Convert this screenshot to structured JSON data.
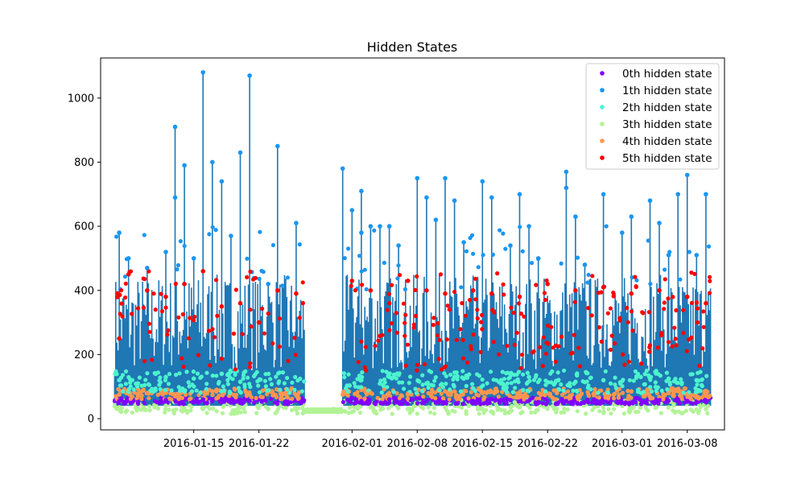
{
  "chart_data": {
    "type": "scatter",
    "title": "Hidden States",
    "xlabel": "",
    "ylabel": "",
    "x_axis": "date",
    "xlim": [
      "2016-01-05",
      "2016-03-12"
    ],
    "ylim": [
      -35,
      1125
    ],
    "x_ticks": [
      "2016-01-15",
      "2016-01-22",
      "2016-02-01",
      "2016-02-08",
      "2016-02-15",
      "2016-02-22",
      "2016-03-01",
      "2016-03-08"
    ],
    "y_ticks": [
      0,
      200,
      400,
      600,
      800,
      1000
    ],
    "grid": false,
    "legend_position": "top-right",
    "connecting_line_color": "#1f77b4",
    "gaps": [
      [
        "2016-01-27",
        "2016-01-31"
      ]
    ],
    "series": [
      {
        "name": "0th hidden state",
        "color": "#8000ff",
        "band": [
          45,
          65
        ],
        "points": [
          [
            "2016-01-07",
            55
          ],
          [
            "2016-01-09",
            52
          ],
          [
            "2016-01-12",
            58
          ],
          [
            "2016-01-16",
            60
          ],
          [
            "2016-01-19",
            50
          ],
          [
            "2016-01-21",
            55
          ],
          [
            "2016-02-02",
            55
          ],
          [
            "2016-02-05",
            60
          ],
          [
            "2016-02-10",
            50
          ],
          [
            "2016-02-14",
            55
          ],
          [
            "2016-02-18",
            58
          ],
          [
            "2016-02-21",
            52
          ],
          [
            "2016-02-24",
            55
          ],
          [
            "2016-02-27",
            60
          ],
          [
            "2016-03-02",
            50
          ],
          [
            "2016-03-05",
            58
          ],
          [
            "2016-03-08",
            55
          ],
          [
            "2016-03-10",
            52
          ]
        ]
      },
      {
        "name": "1th hidden state",
        "color": "#1996f3",
        "band": [
          400,
          600
        ],
        "points": [
          [
            "2016-01-07",
            580
          ],
          [
            "2016-01-08",
            500
          ],
          [
            "2016-01-10",
            470
          ],
          [
            "2016-01-12",
            520
          ],
          [
            "2016-01-13",
            690
          ],
          [
            "2016-01-13",
            910
          ],
          [
            "2016-01-14",
            790
          ],
          [
            "2016-01-15",
            500
          ],
          [
            "2016-01-16",
            1080
          ],
          [
            "2016-01-17",
            800
          ],
          [
            "2016-01-18",
            740
          ],
          [
            "2016-01-19",
            570
          ],
          [
            "2016-01-20",
            830
          ],
          [
            "2016-01-21",
            1070
          ],
          [
            "2016-01-23",
            420
          ],
          [
            "2016-01-24",
            850
          ],
          [
            "2016-01-26",
            610
          ],
          [
            "2016-01-31",
            780
          ],
          [
            "2016-02-01",
            650
          ],
          [
            "2016-02-02",
            710
          ],
          [
            "2016-02-02",
            580
          ],
          [
            "2016-02-03",
            600
          ],
          [
            "2016-02-04",
            600
          ],
          [
            "2016-02-05",
            600
          ],
          [
            "2016-02-06",
            540
          ],
          [
            "2016-02-08",
            750
          ],
          [
            "2016-02-09",
            690
          ],
          [
            "2016-02-10",
            620
          ],
          [
            "2016-02-11",
            750
          ],
          [
            "2016-02-12",
            680
          ],
          [
            "2016-02-13",
            550
          ],
          [
            "2016-02-15",
            740
          ],
          [
            "2016-02-16",
            690
          ],
          [
            "2016-02-18",
            540
          ],
          [
            "2016-02-19",
            700
          ],
          [
            "2016-02-20",
            600
          ],
          [
            "2016-02-21",
            500
          ],
          [
            "2016-02-24",
            770
          ],
          [
            "2016-02-24",
            720
          ],
          [
            "2016-02-25",
            630
          ],
          [
            "2016-02-26",
            480
          ],
          [
            "2016-02-28",
            700
          ],
          [
            "2016-03-01",
            580
          ],
          [
            "2016-03-02",
            630
          ],
          [
            "2016-03-04",
            680
          ],
          [
            "2016-03-05",
            610
          ],
          [
            "2016-03-06",
            510
          ],
          [
            "2016-03-07",
            700
          ],
          [
            "2016-03-08",
            760
          ],
          [
            "2016-03-09",
            510
          ],
          [
            "2016-03-10",
            700
          ]
        ]
      },
      {
        "name": "2th hidden state",
        "color": "#4df3ce",
        "band": [
          80,
          150
        ],
        "points": [
          [
            "2016-01-07",
            120
          ],
          [
            "2016-01-09",
            110
          ],
          [
            "2016-01-12",
            130
          ],
          [
            "2016-01-15",
            125
          ],
          [
            "2016-01-18",
            140
          ],
          [
            "2016-01-20",
            115
          ],
          [
            "2016-02-02",
            120
          ],
          [
            "2016-02-05",
            130
          ],
          [
            "2016-02-09",
            110
          ],
          [
            "2016-02-13",
            125
          ],
          [
            "2016-02-17",
            120
          ],
          [
            "2016-02-20",
            130
          ],
          [
            "2016-02-25",
            115
          ],
          [
            "2016-02-28",
            120
          ],
          [
            "2016-03-03",
            130
          ],
          [
            "2016-03-06",
            125
          ],
          [
            "2016-03-09",
            120
          ]
        ]
      },
      {
        "name": "3th hidden state",
        "color": "#b2f396",
        "band": [
          15,
          60
        ],
        "points": [
          [
            "2016-01-07",
            35
          ],
          [
            "2016-01-09",
            30
          ],
          [
            "2016-01-12",
            40
          ],
          [
            "2016-01-16",
            30
          ],
          [
            "2016-01-20",
            35
          ],
          [
            "2016-01-23",
            30
          ],
          [
            "2016-01-26",
            28
          ],
          [
            "2016-01-28",
            25
          ],
          [
            "2016-01-30",
            30
          ],
          [
            "2016-02-03",
            35
          ],
          [
            "2016-02-07",
            30
          ],
          [
            "2016-02-11",
            35
          ],
          [
            "2016-02-15",
            30
          ],
          [
            "2016-02-19",
            35
          ],
          [
            "2016-02-23",
            30
          ],
          [
            "2016-02-27",
            35
          ],
          [
            "2016-03-02",
            30
          ],
          [
            "2016-03-06",
            35
          ],
          [
            "2016-03-10",
            30
          ]
        ]
      },
      {
        "name": "4th hidden state",
        "color": "#ff964f",
        "band": [
          60,
          95
        ],
        "points": [
          [
            "2016-01-07",
            75
          ],
          [
            "2016-01-10",
            80
          ],
          [
            "2016-01-13",
            70
          ],
          [
            "2016-01-17",
            85
          ],
          [
            "2016-01-21",
            75
          ],
          [
            "2016-01-31",
            75
          ],
          [
            "2016-02-03",
            80
          ],
          [
            "2016-02-07",
            75
          ],
          [
            "2016-02-11",
            85
          ],
          [
            "2016-02-15",
            80
          ],
          [
            "2016-02-19",
            75
          ],
          [
            "2016-02-23",
            80
          ],
          [
            "2016-02-27",
            75
          ],
          [
            "2016-03-02",
            85
          ],
          [
            "2016-03-06",
            80
          ],
          [
            "2016-03-10",
            75
          ]
        ]
      },
      {
        "name": "5th hidden state",
        "color": "#ff0000",
        "band": [
          150,
          460
        ],
        "points": [
          [
            "2016-01-07",
            250
          ],
          [
            "2016-01-08",
            450
          ],
          [
            "2016-01-10",
            400
          ],
          [
            "2016-01-12",
            380
          ],
          [
            "2016-01-14",
            420
          ],
          [
            "2016-01-16",
            460
          ],
          [
            "2016-01-18",
            350
          ],
          [
            "2016-01-20",
            360
          ],
          [
            "2016-01-22",
            300
          ],
          [
            "2016-01-24",
            400
          ],
          [
            "2016-01-26",
            390
          ],
          [
            "2016-02-01",
            430
          ],
          [
            "2016-02-03",
            400
          ],
          [
            "2016-02-05",
            360
          ],
          [
            "2016-02-07",
            430
          ],
          [
            "2016-02-09",
            400
          ],
          [
            "2016-02-11",
            390
          ],
          [
            "2016-02-14",
            400
          ],
          [
            "2016-02-16",
            390
          ],
          [
            "2016-02-19",
            380
          ],
          [
            "2016-02-22",
            420
          ],
          [
            "2016-02-25",
            400
          ],
          [
            "2016-02-28",
            410
          ],
          [
            "2016-03-02",
            390
          ],
          [
            "2016-03-05",
            400
          ],
          [
            "2016-03-08",
            380
          ],
          [
            "2016-03-10",
            360
          ]
        ]
      }
    ]
  }
}
